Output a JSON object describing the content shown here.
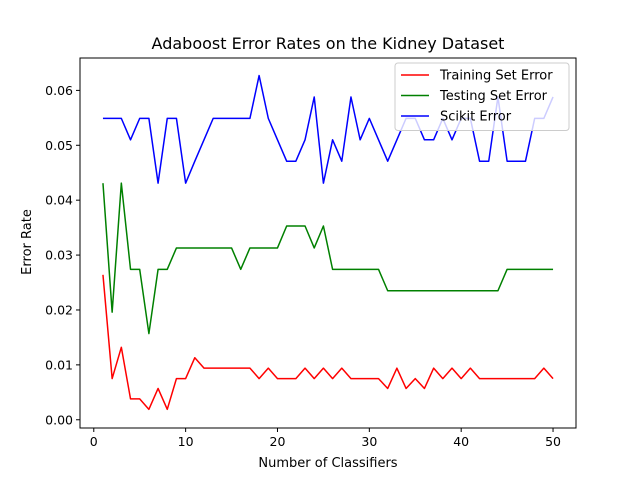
{
  "chart_data": {
    "type": "line",
    "title": "Adaboost Error Rates on the Kidney Dataset",
    "xlabel": "Number of Classifiers",
    "ylabel": "Error Rate",
    "xlim": [
      -1.5,
      52.5
    ],
    "ylim": [
      -0.0015,
      0.0659
    ],
    "xticks": [
      0,
      10,
      20,
      30,
      40,
      50
    ],
    "yticks": [
      0.0,
      0.01,
      0.02,
      0.03,
      0.04,
      0.05,
      0.06
    ],
    "ytick_labels": [
      "0.00",
      "0.01",
      "0.02",
      "0.03",
      "0.04",
      "0.05",
      "0.06"
    ],
    "grid": false,
    "legend_position": "top-right",
    "x": [
      1,
      2,
      3,
      4,
      5,
      6,
      7,
      8,
      9,
      10,
      11,
      12,
      13,
      14,
      15,
      16,
      17,
      18,
      19,
      20,
      21,
      22,
      23,
      24,
      25,
      26,
      27,
      28,
      29,
      30,
      31,
      32,
      33,
      34,
      35,
      36,
      37,
      38,
      39,
      40,
      41,
      42,
      43,
      44,
      45,
      46,
      47,
      48,
      49,
      50
    ],
    "series": [
      {
        "name": "Training Set Error",
        "color": "#ff0000",
        "values": [
          0.0264,
          0.0075,
          0.0132,
          0.0038,
          0.0038,
          0.0019,
          0.0057,
          0.0019,
          0.0075,
          0.0075,
          0.0113,
          0.0094,
          0.0094,
          0.0094,
          0.0094,
          0.0094,
          0.0094,
          0.0075,
          0.0094,
          0.0075,
          0.0075,
          0.0075,
          0.0094,
          0.0075,
          0.0094,
          0.0075,
          0.0094,
          0.0075,
          0.0075,
          0.0075,
          0.0075,
          0.0057,
          0.0094,
          0.0057,
          0.0075,
          0.0057,
          0.0094,
          0.0075,
          0.0094,
          0.0075,
          0.0094,
          0.0075,
          0.0075,
          0.0075,
          0.0075,
          0.0075,
          0.0075,
          0.0075,
          0.0094,
          0.0075
        ]
      },
      {
        "name": "Testing Set Error",
        "color": "#008000",
        "values": [
          0.0431,
          0.0196,
          0.0431,
          0.0274,
          0.0274,
          0.0157,
          0.0274,
          0.0274,
          0.0313,
          0.0313,
          0.0313,
          0.0313,
          0.0313,
          0.0313,
          0.0313,
          0.0274,
          0.0313,
          0.0313,
          0.0313,
          0.0313,
          0.0353,
          0.0353,
          0.0353,
          0.0313,
          0.0353,
          0.0274,
          0.0274,
          0.0274,
          0.0274,
          0.0274,
          0.0274,
          0.0235,
          0.0235,
          0.0235,
          0.0235,
          0.0235,
          0.0235,
          0.0235,
          0.0235,
          0.0235,
          0.0235,
          0.0235,
          0.0235,
          0.0235,
          0.0274,
          0.0274,
          0.0274,
          0.0274,
          0.0274,
          0.0274
        ]
      },
      {
        "name": "Scikit Error",
        "color": "#0000ff",
        "values": [
          0.0549,
          0.0549,
          0.0549,
          0.051,
          0.0549,
          0.0549,
          0.0431,
          0.0549,
          0.0549,
          0.0431,
          0.0471,
          0.051,
          0.0549,
          0.0549,
          0.0549,
          0.0549,
          0.0549,
          0.0627,
          0.0549,
          0.051,
          0.0471,
          0.0471,
          0.051,
          0.0588,
          0.0431,
          0.051,
          0.0471,
          0.0588,
          0.051,
          0.0549,
          0.051,
          0.0471,
          0.051,
          0.0549,
          0.0549,
          0.051,
          0.051,
          0.0549,
          0.051,
          0.0549,
          0.0549,
          0.0471,
          0.0471,
          0.0588,
          0.0471,
          0.0471,
          0.0471,
          0.0549,
          0.0549,
          0.0588
        ]
      }
    ]
  }
}
